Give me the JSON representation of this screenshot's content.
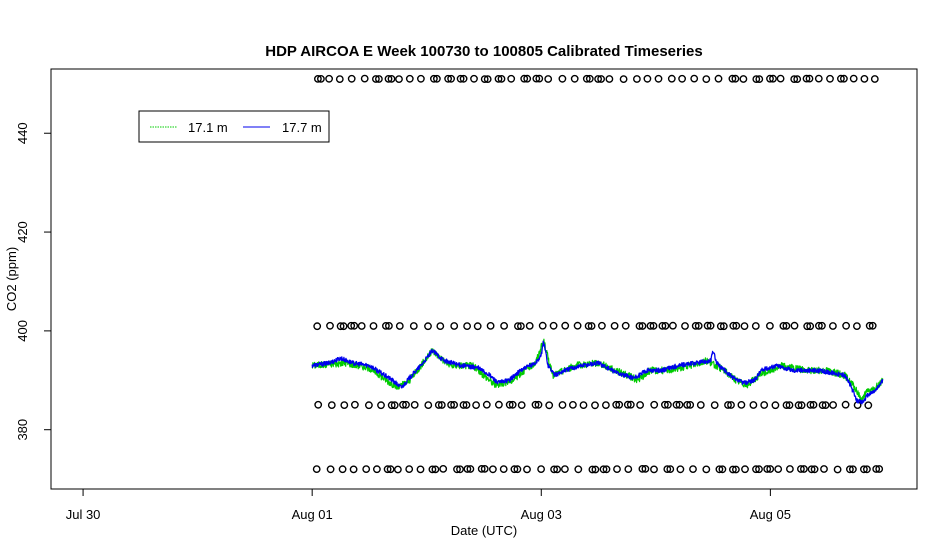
{
  "chart_data": {
    "type": "line",
    "title": "HDP AIRCOA E  Week 100730 to 100805  Calibrated Timeseries",
    "xlabel": "Date (UTC)",
    "ylabel": "CO2 (ppm)",
    "x_ticks": [
      {
        "day": 0,
        "label": "Jul 30"
      },
      {
        "day": 2,
        "label": "Aug 01"
      },
      {
        "day": 4,
        "label": "Aug 03"
      },
      {
        "day": 6,
        "label": "Aug 05"
      }
    ],
    "y_ticks": [
      380,
      400,
      420,
      440
    ],
    "xlim_days_from_jul30": [
      -0.28,
      7.28
    ],
    "ylim": [
      368,
      453
    ],
    "legend": {
      "position": "top-left",
      "entries": [
        {
          "name": "17.1 m",
          "color": "#00cc00"
        },
        {
          "name": "17.7 m",
          "color": "#0000ee"
        }
      ]
    },
    "calibration_levels": [
      451,
      401,
      385,
      372
    ],
    "series": [
      {
        "name": "17.1 m",
        "color": "#00cc00",
        "x_start": "Aug 01 00:00",
        "x_end": "Aug 06 00:00",
        "y_key_points": [
          [
            2.0,
            393
          ],
          [
            2.3,
            393.5
          ],
          [
            2.5,
            392.5
          ],
          [
            2.65,
            390
          ],
          [
            2.75,
            388.5
          ],
          [
            2.85,
            390
          ],
          [
            2.95,
            393
          ],
          [
            3.05,
            396
          ],
          [
            3.2,
            393
          ],
          [
            3.4,
            393
          ],
          [
            3.5,
            391
          ],
          [
            3.6,
            389
          ],
          [
            3.75,
            390
          ],
          [
            3.85,
            392
          ],
          [
            3.95,
            393.5
          ],
          [
            4.02,
            398
          ],
          [
            4.1,
            391
          ],
          [
            4.3,
            393
          ],
          [
            4.5,
            393.5
          ],
          [
            4.65,
            392
          ],
          [
            4.75,
            391
          ],
          [
            4.85,
            390
          ],
          [
            4.95,
            392
          ],
          [
            5.1,
            392
          ],
          [
            5.3,
            393
          ],
          [
            5.45,
            394
          ],
          [
            5.52,
            393
          ],
          [
            5.6,
            392
          ],
          [
            5.7,
            390
          ],
          [
            5.8,
            389
          ],
          [
            5.9,
            391
          ],
          [
            6.1,
            393
          ],
          [
            6.3,
            392
          ],
          [
            6.5,
            392
          ],
          [
            6.65,
            391
          ],
          [
            6.72,
            389
          ],
          [
            6.8,
            386
          ],
          [
            6.85,
            388
          ],
          [
            6.9,
            388
          ],
          [
            6.98,
            390
          ]
        ]
      },
      {
        "name": "17.7 m",
        "color": "#0000ee",
        "x_start": "Aug 01 00:00",
        "x_end": "Aug 06 00:00",
        "y_key_points": [
          [
            2.0,
            393
          ],
          [
            2.15,
            393.5
          ],
          [
            2.25,
            394.5
          ],
          [
            2.35,
            393.5
          ],
          [
            2.5,
            393
          ],
          [
            2.6,
            391.5
          ],
          [
            2.7,
            390
          ],
          [
            2.78,
            388.5
          ],
          [
            2.85,
            390.5
          ],
          [
            2.95,
            393
          ],
          [
            3.05,
            396
          ],
          [
            3.15,
            394
          ],
          [
            3.3,
            393
          ],
          [
            3.45,
            392.5
          ],
          [
            3.55,
            391
          ],
          [
            3.62,
            389.5
          ],
          [
            3.72,
            390
          ],
          [
            3.82,
            392
          ],
          [
            3.95,
            393.5
          ],
          [
            4.0,
            395
          ],
          [
            4.02,
            398
          ],
          [
            4.06,
            393
          ],
          [
            4.12,
            391
          ],
          [
            4.2,
            392
          ],
          [
            4.35,
            393
          ],
          [
            4.5,
            393.5
          ],
          [
            4.62,
            392
          ],
          [
            4.72,
            391
          ],
          [
            4.82,
            390.5
          ],
          [
            4.92,
            392
          ],
          [
            5.05,
            392
          ],
          [
            5.2,
            393
          ],
          [
            5.35,
            393.5
          ],
          [
            5.48,
            394
          ],
          [
            5.5,
            396
          ],
          [
            5.53,
            393.5
          ],
          [
            5.6,
            392
          ],
          [
            5.7,
            390
          ],
          [
            5.78,
            389.5
          ],
          [
            5.86,
            390
          ],
          [
            5.92,
            392
          ],
          [
            6.05,
            393
          ],
          [
            6.2,
            392
          ],
          [
            6.4,
            392
          ],
          [
            6.55,
            391.5
          ],
          [
            6.65,
            391
          ],
          [
            6.7,
            389
          ],
          [
            6.75,
            386
          ],
          [
            6.8,
            385.5
          ],
          [
            6.85,
            387
          ],
          [
            6.92,
            388
          ],
          [
            6.98,
            390
          ]
        ]
      }
    ]
  }
}
